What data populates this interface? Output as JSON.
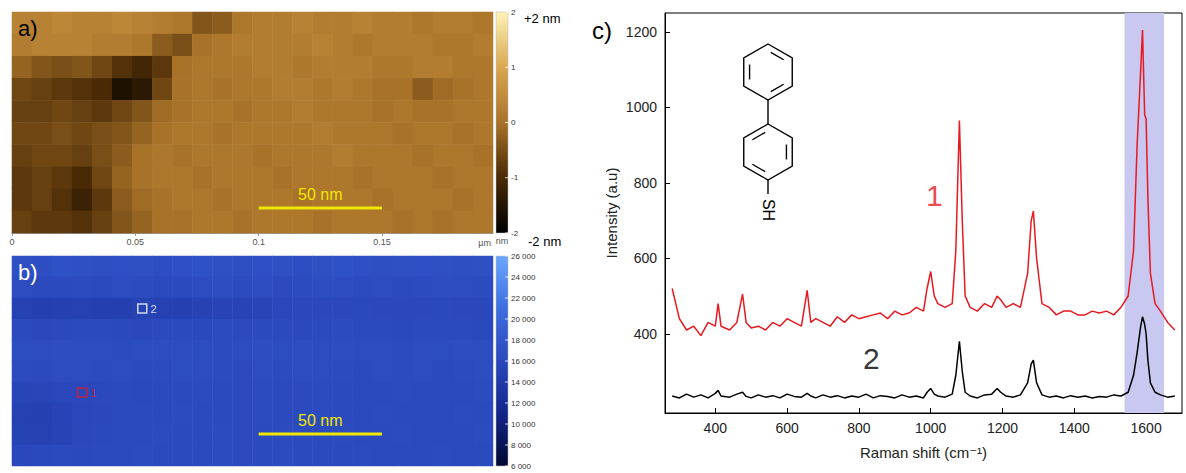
{
  "chart_data": [
    {
      "type": "heatmap",
      "title": "a)",
      "x_unit": "µm",
      "xlim": [
        0,
        0.195
      ],
      "xticks": [
        0,
        0.05,
        0.1,
        0.15
      ],
      "cells": [
        [
          0.3,
          0.3,
          0.4,
          0.3,
          0.3,
          0.4,
          0.3,
          0.2,
          0.1,
          -0.4,
          -0.3,
          0.1,
          0.2,
          0.2,
          0.3,
          0.2,
          0.2,
          0.3,
          0.2,
          0.2,
          0.1,
          0.2,
          0.2,
          0.1
        ],
        [
          0.2,
          0.3,
          0.3,
          0.3,
          0.2,
          0.2,
          0.1,
          -0.3,
          -0.5,
          0.0,
          0.1,
          0.2,
          0.2,
          0.2,
          0.2,
          0.3,
          0.2,
          0.1,
          0.2,
          0.2,
          0.2,
          0.1,
          0.1,
          0.2
        ],
        [
          -0.2,
          -0.4,
          -0.5,
          -0.4,
          -0.6,
          -0.9,
          -1.1,
          -0.8,
          0.0,
          0.1,
          0.1,
          0.1,
          0.2,
          0.2,
          0.1,
          0.2,
          0.2,
          0.2,
          0.1,
          0.1,
          0.2,
          0.2,
          0.1,
          0.1
        ],
        [
          -0.6,
          -0.7,
          -0.8,
          -0.9,
          -1.0,
          -1.6,
          -1.4,
          -0.6,
          0.0,
          0.1,
          0.0,
          0.1,
          0.1,
          0.2,
          0.2,
          0.1,
          0.2,
          0.1,
          0.0,
          0.0,
          -0.3,
          -0.1,
          0.0,
          0.1
        ],
        [
          -0.7,
          -0.7,
          -0.6,
          -0.7,
          -0.8,
          -0.6,
          -0.4,
          -0.1,
          0.0,
          0.1,
          0.1,
          0.0,
          0.1,
          0.1,
          0.2,
          0.1,
          0.1,
          0.1,
          0.0,
          0.1,
          0.0,
          0.0,
          0.1,
          0.1
        ],
        [
          -0.6,
          -0.6,
          -0.5,
          -0.6,
          -0.5,
          -0.4,
          -0.2,
          0.0,
          0.1,
          0.1,
          0.0,
          0.1,
          0.1,
          0.1,
          0.1,
          0.2,
          0.1,
          0.1,
          0.1,
          0.0,
          0.1,
          0.1,
          0.0,
          0.1
        ],
        [
          -0.7,
          -0.6,
          -0.6,
          -0.7,
          -0.5,
          -0.3,
          0.0,
          0.1,
          0.0,
          0.1,
          0.1,
          0.1,
          0.0,
          0.1,
          0.1,
          0.1,
          0.2,
          0.1,
          0.1,
          0.1,
          0.0,
          0.1,
          0.1,
          0.0
        ],
        [
          -0.8,
          -0.7,
          -0.8,
          -1.0,
          -0.6,
          -0.2,
          0.0,
          0.1,
          0.1,
          0.0,
          0.1,
          0.1,
          0.1,
          0.0,
          0.1,
          0.1,
          0.1,
          0.0,
          0.1,
          0.1,
          0.1,
          0.0,
          0.1,
          0.1
        ],
        [
          -0.8,
          -0.7,
          -0.9,
          -1.2,
          -0.8,
          -0.3,
          -0.1,
          0.0,
          0.1,
          0.1,
          0.0,
          0.1,
          0.1,
          0.1,
          0.0,
          0.1,
          0.1,
          0.1,
          0.0,
          0.1,
          0.1,
          0.1,
          0.0,
          0.1
        ],
        [
          -0.7,
          -0.8,
          -0.8,
          -0.9,
          -0.7,
          -0.4,
          -0.2,
          0.0,
          0.0,
          0.1,
          0.1,
          0.0,
          0.1,
          0.1,
          0.1,
          0.0,
          0.1,
          0.1,
          0.1,
          0.0,
          0.1,
          0.0,
          0.1,
          0.1
        ]
      ],
      "colorbar": {
        "range": [
          -2,
          2
        ],
        "ticks": [
          2,
          1,
          0,
          -1,
          -2
        ],
        "unit": "nm",
        "top_label": "+2 nm",
        "bottom_label": "-2 nm"
      },
      "scale_bar": {
        "label": "50 nm",
        "start": 0.1,
        "length": 0.05
      }
    },
    {
      "type": "heatmap",
      "title": "b)",
      "xlim": [
        0,
        0.195
      ],
      "tick_labels": false,
      "cells": [
        [
          17000,
          16800,
          17200,
          17000,
          16900,
          17100,
          17000,
          16800,
          17100,
          17200,
          17000,
          16900,
          17100,
          17000,
          16800,
          17000,
          17200,
          17100,
          16900,
          17000,
          17100,
          17000,
          16900,
          17000
        ],
        [
          16500,
          16300,
          16200,
          16400,
          16300,
          16500,
          16400,
          16200,
          16300,
          16500,
          16600,
          16400,
          16500,
          16300,
          16400,
          16600,
          16500,
          16400,
          16500,
          16300,
          16400,
          16500,
          16600,
          16400
        ],
        [
          15000,
          14800,
          14900,
          15000,
          14700,
          14800,
          15200,
          15000,
          14900,
          15100,
          15300,
          15400,
          15600,
          15800,
          15900,
          16000,
          15900,
          16100,
          16000,
          15900,
          16000,
          16100,
          16000,
          15900
        ],
        [
          16200,
          16000,
          16100,
          16300,
          16200,
          16100,
          16000,
          16200,
          16300,
          16100,
          16400,
          16200,
          16300,
          16200,
          16100,
          16300,
          16400,
          16200,
          16300,
          16100,
          16200,
          16300,
          16200,
          16100
        ],
        [
          16600,
          16500,
          16700,
          16600,
          16500,
          16400,
          16600,
          16700,
          16500,
          16600,
          16400,
          16500,
          16700,
          16600,
          16500,
          16600,
          16700,
          16500,
          16600,
          16400,
          16500,
          16600,
          16700,
          16500
        ],
        [
          16400,
          16300,
          16500,
          16600,
          16400,
          16500,
          16300,
          16400,
          16600,
          16500,
          16400,
          16300,
          16500,
          16400,
          16600,
          16500,
          16400,
          16300,
          16500,
          16400,
          16500,
          16300,
          16400,
          16500
        ],
        [
          15500,
          15700,
          15800,
          16000,
          16100,
          16200,
          16100,
          16300,
          16200,
          16400,
          16300,
          16200,
          16400,
          16300,
          16200,
          16400,
          16300,
          16200,
          16300,
          16400,
          16300,
          16200,
          16300,
          16400
        ],
        [
          15000,
          14900,
          15300,
          15800,
          16000,
          16200,
          16300,
          16200,
          16400,
          16300,
          16200,
          16300,
          16400,
          16200,
          16300,
          16400,
          16300,
          16200,
          16400,
          16300,
          16200,
          16300,
          16400,
          16300
        ],
        [
          15200,
          15000,
          15400,
          15900,
          16100,
          16300,
          16200,
          16400,
          16300,
          16200,
          16400,
          16300,
          16200,
          16400,
          16300,
          16200,
          16400,
          16300,
          16200,
          16400,
          16300,
          16200,
          16300,
          16400
        ],
        [
          16000,
          16100,
          16200,
          16100,
          16300,
          16200,
          16400,
          16300,
          16200,
          16300,
          16400,
          16200,
          16300,
          16400,
          16200,
          16300,
          16200,
          16400,
          16300,
          16200,
          16300,
          16400,
          16200,
          16300
        ]
      ],
      "colorbar": {
        "range": [
          6000,
          26000
        ],
        "ticks": [
          {
            "value": 26000,
            "label": "26 000"
          },
          {
            "value": 24000,
            "label": "24 000"
          },
          {
            "value": 22000,
            "label": "22 000"
          },
          {
            "value": 20000,
            "label": "20 000"
          },
          {
            "value": 18000,
            "label": "18 000"
          },
          {
            "value": 16000,
            "label": "16 000"
          },
          {
            "value": 14000,
            "label": "14 000"
          },
          {
            "value": 12000,
            "label": "12 000"
          },
          {
            "value": 10000,
            "label": "10 000"
          },
          {
            "value": 8000,
            "label": "8 000"
          },
          {
            "value": 6000,
            "label": "6 000"
          }
        ]
      },
      "markers": [
        {
          "label": "1",
          "col": 3,
          "row": 6,
          "color": "#e8191f"
        },
        {
          "label": "2",
          "col": 6,
          "row": 2,
          "color": "#ffffff"
        }
      ],
      "scale_bar": {
        "label": "50 nm",
        "start": 0.1,
        "length": 0.05
      }
    },
    {
      "type": "line",
      "title": "c)",
      "xlabel": "Raman shift (cm⁻¹)",
      "ylabel": "Intensity (a.u)",
      "xlim": [
        260,
        1700
      ],
      "ylim": [
        190,
        1250
      ],
      "xticks": [
        400,
        600,
        800,
        1000,
        1200,
        1400,
        1600
      ],
      "yticks": [
        400,
        600,
        800,
        1000,
        1200
      ],
      "grid": false,
      "x": [
        280,
        300,
        320,
        340,
        360,
        380,
        400,
        408,
        416,
        440,
        460,
        476,
        486,
        500,
        520,
        540,
        560,
        580,
        600,
        620,
        640,
        656,
        666,
        680,
        700,
        720,
        740,
        760,
        780,
        800,
        820,
        840,
        860,
        880,
        900,
        920,
        940,
        960,
        980,
        990,
        1000,
        1010,
        1020,
        1040,
        1060,
        1070,
        1080,
        1088,
        1096,
        1110,
        1130,
        1150,
        1170,
        1185,
        1195,
        1210,
        1230,
        1250,
        1270,
        1280,
        1286,
        1295,
        1310,
        1330,
        1350,
        1370,
        1390,
        1410,
        1430,
        1450,
        1470,
        1490,
        1510,
        1530,
        1550,
        1565,
        1575,
        1585,
        1590,
        1596,
        1600,
        1605,
        1612,
        1625,
        1640,
        1660,
        1680
      ],
      "series": [
        {
          "name": "1",
          "color": "#e8191f",
          "label_at": [
            1010,
            767
          ],
          "values": [
            520,
            440,
            410,
            420,
            395,
            430,
            420,
            480,
            420,
            410,
            430,
            505,
            430,
            415,
            420,
            410,
            430,
            420,
            440,
            430,
            420,
            515,
            430,
            440,
            430,
            420,
            445,
            430,
            450,
            440,
            445,
            450,
            455,
            440,
            460,
            450,
            455,
            470,
            460,
            520,
            565,
            500,
            480,
            470,
            480,
            620,
            965,
            700,
            500,
            470,
            460,
            480,
            470,
            500,
            490,
            470,
            480,
            470,
            560,
            700,
            725,
            600,
            480,
            470,
            450,
            460,
            460,
            450,
            450,
            460,
            455,
            460,
            450,
            470,
            500,
            620,
            900,
            1100,
            1205,
            980,
            970,
            760,
            560,
            480,
            460,
            430,
            410
          ]
        },
        {
          "name": "2",
          "color": "#000000",
          "label_at": [
            835,
            335
          ],
          "values": [
            235,
            230,
            240,
            232,
            238,
            230,
            242,
            250,
            235,
            232,
            240,
            245,
            234,
            230,
            238,
            232,
            236,
            230,
            240,
            234,
            232,
            242,
            235,
            230,
            238,
            232,
            236,
            230,
            235,
            232,
            240,
            230,
            236,
            234,
            230,
            238,
            232,
            235,
            230,
            245,
            255,
            240,
            235,
            232,
            240,
            290,
            380,
            300,
            245,
            235,
            230,
            238,
            240,
            255,
            245,
            235,
            232,
            238,
            270,
            320,
            330,
            270,
            238,
            232,
            235,
            230,
            236,
            232,
            235,
            230,
            234,
            232,
            238,
            235,
            245,
            290,
            350,
            420,
            445,
            425,
            400,
            330,
            270,
            245,
            238,
            232,
            235
          ]
        }
      ],
      "highlight": {
        "from": 1540,
        "to": 1650,
        "color": "#c8c8f0"
      },
      "molecule_label": "SH"
    }
  ]
}
